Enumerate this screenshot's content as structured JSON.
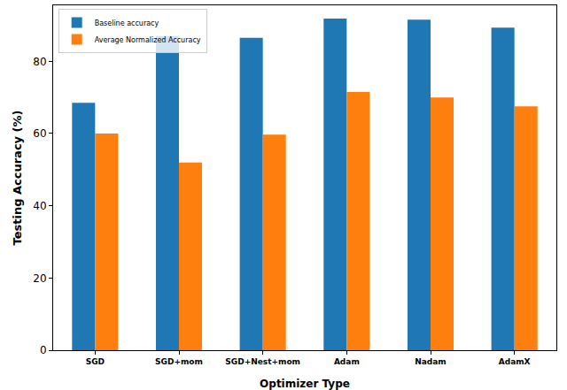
{
  "chart_data": {
    "type": "bar",
    "x_label": "Optimizer Type",
    "y_label": "Testing Accuracy (%)",
    "categories": [
      "SGD",
      "SGD+mom",
      "SGD+Nest+mom",
      "Adam",
      "Nadam",
      "AdamX"
    ],
    "series": [
      {
        "name": "Baseline accuracy",
        "color": "#1f77b4",
        "values": [
          68.5,
          87.0,
          86.5,
          91.8,
          91.5,
          89.3
        ]
      },
      {
        "name": "Average Normalized Accuracy",
        "color": "#ff7f0e",
        "values": [
          60.0,
          52.0,
          59.7,
          71.5,
          70.0,
          67.5
        ]
      }
    ],
    "ylim": [
      0,
      95.5
    ],
    "yticks": [
      0,
      20,
      40,
      60,
      80
    ],
    "grid": false,
    "legend": "upper left"
  }
}
